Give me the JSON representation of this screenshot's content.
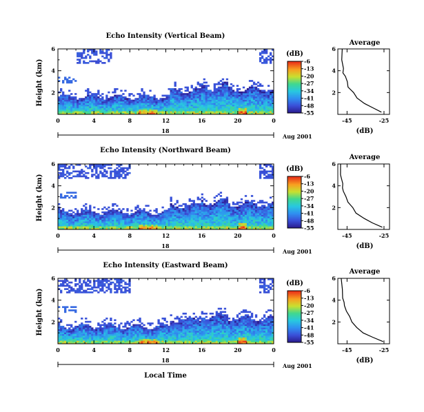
{
  "figure": {
    "date_label": "Aug 2001",
    "xlabel_bottom": "Local Time",
    "day_label": "18"
  },
  "chart_data": [
    {
      "type": "heatmap",
      "title": "Echo Intensity (Vertical Beam)",
      "ylabel": "Height (km)",
      "xlabel": "Local Time",
      "x_ticks": [
        "0",
        "4",
        "8",
        "12",
        "16",
        "20",
        "0"
      ],
      "x_range_hours": [
        0,
        24
      ],
      "y_ticks": [
        "2",
        "4",
        "6"
      ],
      "ylim": [
        0,
        6
      ],
      "colorbar": {
        "unit": "(dB)",
        "ticks": [
          "-6",
          "-13",
          "-20",
          "-27",
          "-34",
          "-41",
          "-48",
          "-55"
        ],
        "range": [
          -55,
          -6
        ]
      },
      "profile": {
        "title": "Average",
        "xlabel": "(dB)",
        "x_ticks": [
          "-45",
          "-25"
        ],
        "y_ticks": [
          "2",
          "4",
          "6"
        ],
        "heights_km": [
          0.2,
          0.6,
          1.0,
          1.5,
          2.0,
          2.5,
          3.0,
          3.5,
          3.8,
          4.2,
          5.0,
          6.0
        ],
        "values_db": [
          -26,
          -31,
          -36,
          -40,
          -42,
          -44,
          -45,
          -46.5,
          -47,
          -47.5,
          -48,
          -48
        ]
      }
    },
    {
      "type": "heatmap",
      "title": "Echo Intensity (Northward Beam)",
      "ylabel": "Height (km)",
      "xlabel": "Local Time",
      "x_ticks": [
        "0",
        "4",
        "8",
        "12",
        "16",
        "20",
        "0"
      ],
      "x_range_hours": [
        0,
        24
      ],
      "y_ticks": [
        "2",
        "4",
        "6"
      ],
      "ylim": [
        0,
        6
      ],
      "colorbar": {
        "unit": "(dB)",
        "ticks": [
          "-6",
          "-13",
          "-20",
          "-27",
          "-34",
          "-41",
          "-48",
          "-55"
        ],
        "range": [
          -55,
          -6
        ]
      },
      "profile": {
        "title": "Average",
        "xlabel": "(dB)",
        "x_ticks": [
          "-45",
          "-25"
        ],
        "y_ticks": [
          "2",
          "4",
          "6"
        ],
        "heights_km": [
          0.2,
          0.6,
          1.0,
          1.5,
          2.0,
          2.5,
          3.0,
          3.5,
          3.8,
          4.2,
          5.0,
          6.0
        ],
        "values_db": [
          -26,
          -31,
          -36,
          -40,
          -42,
          -44,
          -45,
          -46.5,
          -47,
          -47.5,
          -48,
          -48
        ]
      }
    },
    {
      "type": "heatmap",
      "title": "Echo Intensity (Eastward Beam)",
      "ylabel": "Height (km)",
      "xlabel": "Local Time",
      "x_ticks": [
        "0",
        "4",
        "8",
        "12",
        "16",
        "20",
        "0"
      ],
      "x_range_hours": [
        0,
        24
      ],
      "y_ticks": [
        "2",
        "4",
        "6"
      ],
      "ylim": [
        0,
        6
      ],
      "colorbar": {
        "unit": "(dB)",
        "ticks": [
          "-6",
          "-13",
          "-20",
          "-27",
          "-34",
          "-41",
          "-48",
          "-55"
        ],
        "range": [
          -55,
          -6
        ]
      },
      "profile": {
        "title": "Average",
        "xlabel": "(dB)",
        "x_ticks": [
          "-45",
          "-25"
        ],
        "y_ticks": [
          "2",
          "4",
          "6"
        ],
        "heights_km": [
          0.2,
          0.6,
          1.0,
          1.5,
          2.0,
          2.5,
          3.0,
          3.5,
          3.8,
          4.2,
          5.0,
          6.0
        ],
        "values_db": [
          -26,
          -31,
          -36,
          -40,
          -42,
          -44,
          -45,
          -46.5,
          -47,
          -47.5,
          -48,
          -48
        ]
      }
    }
  ]
}
